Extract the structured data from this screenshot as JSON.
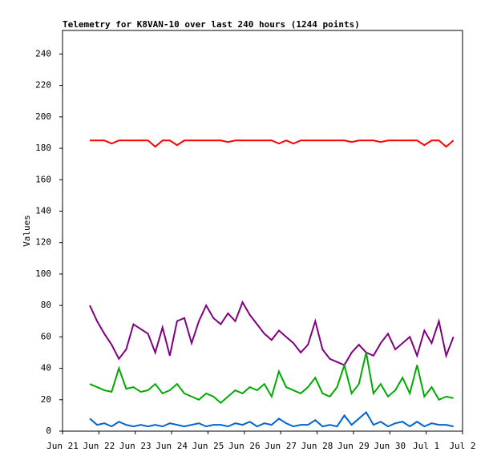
{
  "chart_data": {
    "type": "line",
    "title": "Telemetry for K8VAN-10 over last 240 hours (1244 points)",
    "y_label": "Values",
    "xlim": [
      0,
      11
    ],
    "xticks": [
      {
        "value": 0,
        "label": "Jun 21"
      },
      {
        "value": 1,
        "label": "Jun 22"
      },
      {
        "value": 2,
        "label": "Jun 23"
      },
      {
        "value": 3,
        "label": "Jun 24"
      },
      {
        "value": 4,
        "label": "Jun 25"
      },
      {
        "value": 5,
        "label": "Jun 26"
      },
      {
        "value": 6,
        "label": "Jun 27"
      },
      {
        "value": 7,
        "label": "Jun 28"
      },
      {
        "value": 8,
        "label": "Jun 29"
      },
      {
        "value": 9,
        "label": "Jun 30"
      },
      {
        "value": 10,
        "label": "Jul 1"
      },
      {
        "value": 11,
        "label": "Jul 2"
      }
    ],
    "ylim": [
      0,
      255
    ],
    "yticks": [
      0,
      20,
      40,
      60,
      80,
      100,
      120,
      140,
      160,
      180,
      200,
      220,
      240
    ],
    "x": [
      0.75,
      0.95,
      1.15,
      1.35,
      1.55,
      1.75,
      1.95,
      2.15,
      2.35,
      2.55,
      2.75,
      2.95,
      3.15,
      3.35,
      3.55,
      3.75,
      3.95,
      4.15,
      4.35,
      4.55,
      4.75,
      4.95,
      5.15,
      5.35,
      5.55,
      5.75,
      5.95,
      6.15,
      6.35,
      6.55,
      6.75,
      6.95,
      7.15,
      7.35,
      7.55,
      7.75,
      7.95,
      8.15,
      8.35,
      8.55,
      8.75,
      8.95,
      9.15,
      9.35,
      9.55,
      9.75,
      9.95,
      10.15,
      10.35,
      10.55,
      10.75
    ],
    "series": [
      {
        "color": "#ff0000",
        "values": [
          185,
          185,
          185,
          183,
          185,
          185,
          185,
          185,
          185,
          181,
          185,
          185,
          182,
          185,
          185,
          185,
          185,
          185,
          185,
          184,
          185,
          185,
          185,
          185,
          185,
          185,
          183,
          185,
          183,
          185,
          185,
          185,
          185,
          185,
          185,
          185,
          184,
          185,
          185,
          185,
          184,
          185,
          185,
          185,
          185,
          185,
          182,
          185,
          185,
          181,
          185
        ]
      },
      {
        "color": "#800080",
        "values": [
          80,
          70,
          62,
          55,
          46,
          52,
          68,
          65,
          62,
          50,
          66,
          48,
          70,
          72,
          56,
          70,
          80,
          72,
          68,
          75,
          70,
          82,
          74,
          68,
          62,
          58,
          64,
          60,
          56,
          50,
          55,
          70,
          52,
          46,
          44,
          42,
          50,
          55,
          50,
          48,
          56,
          62,
          52,
          56,
          60,
          48,
          64,
          56,
          70,
          48,
          60
        ]
      },
      {
        "color": "#00aa00",
        "values": [
          30,
          28,
          26,
          25,
          40,
          27,
          28,
          25,
          26,
          30,
          24,
          26,
          30,
          24,
          22,
          20,
          24,
          22,
          18,
          22,
          26,
          24,
          28,
          26,
          30,
          22,
          38,
          28,
          26,
          24,
          28,
          34,
          24,
          22,
          28,
          42,
          24,
          30,
          50,
          24,
          30,
          22,
          26,
          34,
          24,
          42,
          22,
          28,
          20,
          22,
          21
        ]
      },
      {
        "color": "#0066cc",
        "values": [
          8,
          4,
          5,
          3,
          6,
          4,
          3,
          4,
          3,
          4,
          3,
          5,
          4,
          3,
          4,
          5,
          3,
          4,
          4,
          3,
          5,
          4,
          6,
          3,
          5,
          4,
          8,
          5,
          3,
          4,
          4,
          7,
          3,
          4,
          3,
          10,
          4,
          8,
          12,
          4,
          6,
          3,
          5,
          6,
          3,
          6,
          3,
          5,
          4,
          4,
          3
        ]
      }
    ]
  }
}
